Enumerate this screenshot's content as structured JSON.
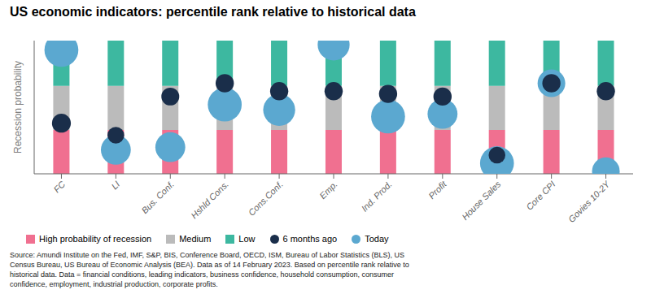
{
  "chart_data": {
    "type": "bar",
    "title": "US economic indicators: percentile rank relative to historical data",
    "y_label": "Recession probability",
    "categories": [
      "FC",
      "LI",
      "Bus. Conf.",
      "Hshld Cons.",
      "Cons.Conf.",
      "Emp.",
      "Ind. Prod.",
      "Profit",
      "House Sales",
      "Core CPI",
      "Govies 10-2Y"
    ],
    "series": [
      {
        "name": "High probability of recession",
        "type": "bar",
        "color": "#F07090",
        "values": [
          0.33,
          0.33,
          0.33,
          0.33,
          0.33,
          0.33,
          0.33,
          0.33,
          0.33,
          0.33,
          0.33
        ]
      },
      {
        "name": "Medium",
        "type": "bar",
        "color": "#BBBBBB",
        "values": [
          0.33,
          0.33,
          0.33,
          0.33,
          0.33,
          0.33,
          0.33,
          0.33,
          0.33,
          0.33,
          0.33
        ]
      },
      {
        "name": "Low",
        "type": "bar",
        "color": "#3DB8A0",
        "values": [
          0.34,
          0.34,
          0.34,
          0.34,
          0.34,
          0.34,
          0.34,
          0.34,
          0.34,
          0.34,
          0.34
        ]
      },
      {
        "name": "6 months ago",
        "type": "scatter",
        "marker": "circle",
        "color": "#1A2E4A",
        "values": [
          0.38,
          0.29,
          0.58,
          0.68,
          0.62,
          0.62,
          0.6,
          0.58,
          0.14,
          0.68,
          0.62
        ],
        "sizes": [
          280,
          220,
          250,
          260,
          260,
          260,
          260,
          260,
          220,
          260,
          260
        ]
      },
      {
        "name": "Today",
        "type": "scatter",
        "marker": "circle",
        "color": "#5BA8D0",
        "values": [
          0.93,
          0.18,
          0.2,
          0.52,
          0.48,
          0.97,
          0.43,
          0.45,
          0.08,
          0.68,
          0.02
        ],
        "sizes": [
          900,
          700,
          700,
          900,
          800,
          800,
          900,
          700,
          900,
          600,
          600
        ]
      }
    ],
    "stacked": true,
    "ylim": [
      0,
      1
    ],
    "yticks": [],
    "tick_labels": "x",
    "grid": false,
    "legend": "bottom",
    "annotations": [
      "Source: Amundi Institute on the Fed, IMF, S&P, BIS, Conference Board, OECD, ISM, Bureau of Labor Statistics (BLS), US\nCensus Bureau, US Bureau of Economic Analysis (BEA). Data as of 14 February 2023. Based on percentile rank relative to\nhistorical data. Data = financial conditions, leading indicators, business confidence, household consumption, consumer\nconfidence, employment, industrial production, corporate profits."
    ]
  }
}
